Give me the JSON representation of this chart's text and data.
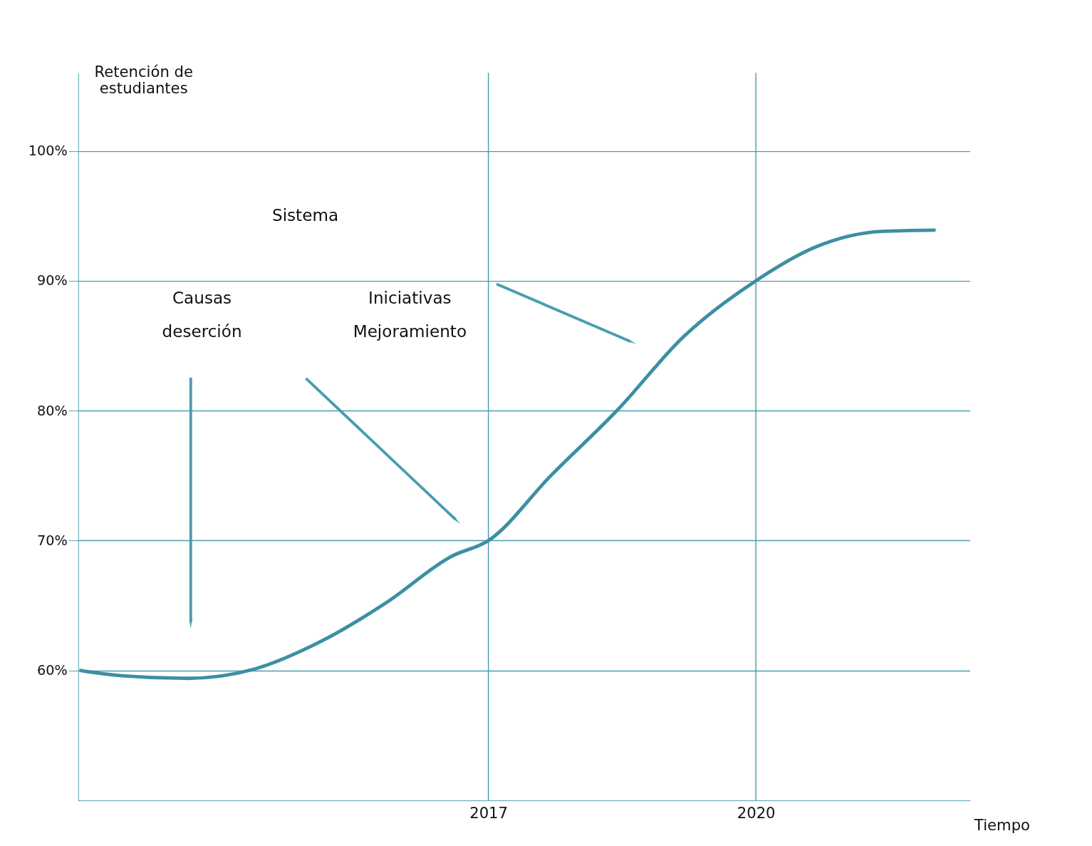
{
  "chart_data": {
    "type": "line",
    "xlabel": "Tiempo",
    "ylabel": "Retención de estudiantes",
    "x": [
      2012.43,
      2012.89,
      2013.63,
      2014.37,
      2015.11,
      2015.85,
      2016.59,
      2017.0,
      2017.7,
      2018.44,
      2019.19,
      2020.0,
      2020.67,
      2021.41,
      2022.0
    ],
    "series": [
      {
        "color": "#3d8fa3",
        "values": [
          60.0,
          59.6,
          59.4,
          60.1,
          62.2,
          65.2,
          68.8,
          70.0,
          75.0,
          80.0,
          85.7,
          90.0,
          92.6,
          93.8,
          93.9
        ]
      }
    ],
    "xlim": [
      2012.4,
      2022.4
    ],
    "ylim": [
      50,
      106
    ],
    "xticks": [
      2017,
      2020
    ],
    "yticks": [
      {
        "value": 60,
        "label": "60%"
      },
      {
        "value": 70,
        "label": "70%"
      },
      {
        "value": 80,
        "label": "80%"
      },
      {
        "value": 90,
        "label": "90%"
      },
      {
        "value": 100,
        "label": "100%"
      }
    ],
    "grid": "y",
    "ref_lines": [
      {
        "axis": "x",
        "value": 2017,
        "color": "#4a9db0"
      },
      {
        "axis": "x",
        "value": 2020,
        "color": "#4a9db0"
      }
    ],
    "annotations": [
      "Sistema",
      "Causas deserción",
      "Iniciativas Mejoramiento"
    ]
  }
}
